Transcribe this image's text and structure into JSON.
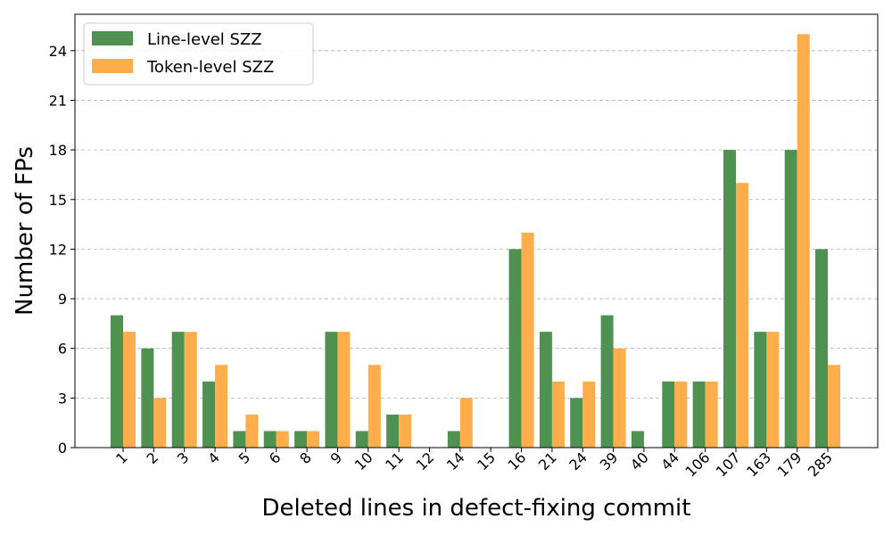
{
  "chart_data": {
    "type": "bar",
    "title": "",
    "xlabel": "Deleted lines in defect-fixing commit",
    "ylabel": "Number of FPs",
    "categories": [
      "1",
      "2",
      "3",
      "4",
      "5",
      "6",
      "8",
      "9",
      "10",
      "11",
      "12",
      "14",
      "15",
      "16",
      "21",
      "24",
      "39",
      "40",
      "44",
      "106",
      "107",
      "163",
      "179",
      "285"
    ],
    "series": [
      {
        "name": "Line-level SZZ",
        "color": "#4f9150",
        "values": [
          8,
          6,
          7,
          4,
          1,
          1,
          1,
          7,
          1,
          2,
          0,
          1,
          0,
          12,
          7,
          3,
          8,
          1,
          4,
          4,
          18,
          7,
          18,
          12
        ]
      },
      {
        "name": "Token-level SZZ",
        "color": "#ffae4b",
        "values": [
          7,
          3,
          7,
          5,
          2,
          1,
          1,
          7,
          5,
          2,
          0,
          3,
          0,
          13,
          4,
          4,
          6,
          0,
          4,
          4,
          16,
          7,
          25,
          5
        ]
      }
    ],
    "ylim": [
      0,
      26.2
    ],
    "yticks": [
      0,
      3,
      6,
      9,
      12,
      15,
      18,
      21,
      24
    ],
    "grid": "y-dashed",
    "legend_position": "top-left",
    "xtick_rotation": -45
  }
}
